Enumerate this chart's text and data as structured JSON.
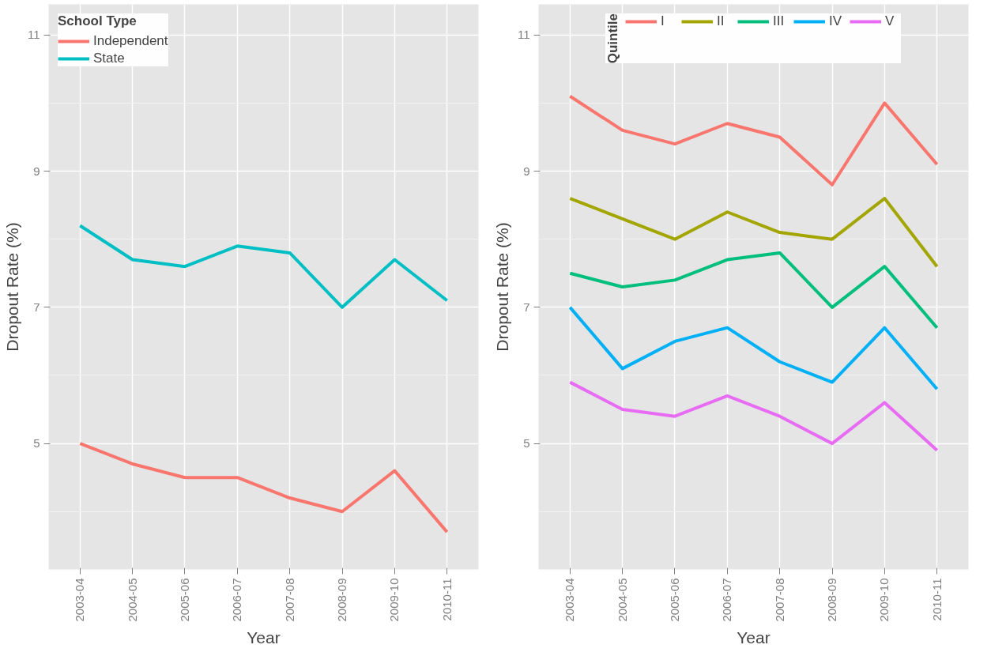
{
  "chart_data": [
    {
      "type": "line",
      "xlabel": "Year",
      "ylabel": "Dropout Rate (%)",
      "legend_title": "School Type",
      "legend": "top left",
      "grid": true,
      "categories": [
        "2003-04",
        "2004-05",
        "2005-06",
        "2006-07",
        "2007-08",
        "2008-09",
        "2009-10",
        "2010-11"
      ],
      "ylim": [
        3.15,
        11.45
      ],
      "yticks": [
        5,
        7,
        9,
        11
      ],
      "series": [
        {
          "name": "Independent",
          "color": "#f8766d",
          "values": [
            5.0,
            4.7,
            4.5,
            4.5,
            4.2,
            4.0,
            4.6,
            3.7
          ]
        },
        {
          "name": "State",
          "color": "#00bfc4",
          "values": [
            8.2,
            7.7,
            7.6,
            7.9,
            7.8,
            7.0,
            7.7,
            7.1
          ]
        }
      ]
    },
    {
      "type": "line",
      "xlabel": "Year",
      "ylabel": "Dropout Rate (%)",
      "legend_title": "Quintile",
      "legend": "top",
      "grid": true,
      "categories": [
        "2003-04",
        "2004-05",
        "2005-06",
        "2006-07",
        "2007-08",
        "2008-09",
        "2009-10",
        "2010-11"
      ],
      "ylim": [
        3.15,
        11.45
      ],
      "yticks": [
        5,
        7,
        9,
        11
      ],
      "series": [
        {
          "name": "I",
          "color": "#f8766d",
          "values": [
            10.1,
            9.6,
            9.4,
            9.7,
            9.5,
            8.8,
            10.0,
            9.1
          ]
        },
        {
          "name": "II",
          "color": "#a3a500",
          "values": [
            8.6,
            8.3,
            8.0,
            8.4,
            8.1,
            8.0,
            8.6,
            7.6
          ]
        },
        {
          "name": "III",
          "color": "#00bf7d",
          "values": [
            7.5,
            7.3,
            7.4,
            7.7,
            7.8,
            7.0,
            7.6,
            6.7
          ]
        },
        {
          "name": "IV",
          "color": "#00b0f6",
          "values": [
            7.0,
            6.1,
            6.5,
            6.7,
            6.2,
            5.9,
            6.7,
            5.8
          ]
        },
        {
          "name": "V",
          "color": "#e76bf3",
          "values": [
            5.9,
            5.5,
            5.4,
            5.7,
            5.4,
            5.0,
            5.6,
            4.9
          ]
        }
      ]
    }
  ]
}
